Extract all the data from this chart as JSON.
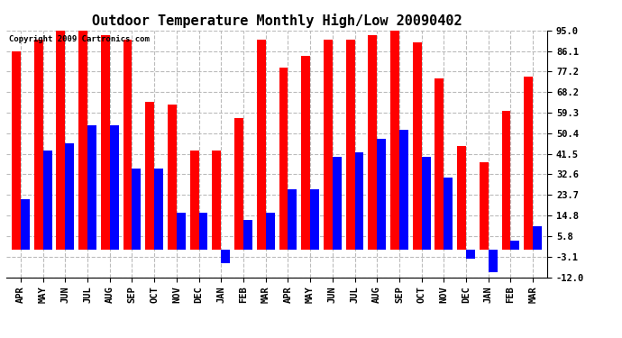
{
  "title": "Outdoor Temperature Monthly High/Low 20090402",
  "copyright": "Copyright 2009 Cartronics.com",
  "categories": [
    "APR",
    "MAY",
    "JUN",
    "JUL",
    "AUG",
    "SEP",
    "OCT",
    "NOV",
    "DEC",
    "JAN",
    "FEB",
    "MAR",
    "APR",
    "MAY",
    "JUN",
    "JUL",
    "AUG",
    "SEP",
    "OCT",
    "NOV",
    "DEC",
    "JAN",
    "FEB",
    "MAR"
  ],
  "highs": [
    86,
    91,
    95,
    95,
    93,
    91,
    64,
    63,
    43,
    43,
    57,
    91,
    79,
    84,
    91,
    91,
    93,
    95,
    90,
    74,
    45,
    38,
    60,
    75
  ],
  "lows": [
    22,
    43,
    46,
    54,
    54,
    35,
    35,
    16,
    16,
    -6,
    13,
    16,
    26,
    26,
    40,
    42,
    48,
    52,
    40,
    31,
    -4,
    -10,
    4,
    10
  ],
  "ylim": [
    -12.0,
    95.0
  ],
  "yticks": [
    95.0,
    86.1,
    77.2,
    68.2,
    59.3,
    50.4,
    41.5,
    32.6,
    23.7,
    14.8,
    5.8,
    -3.1,
    -12.0
  ],
  "bar_width": 0.4,
  "color_high": "#ff0000",
  "color_low": "#0000ff",
  "bg_color": "#ffffff",
  "grid_color": "#bbbbbb",
  "title_fontsize": 11,
  "tick_fontsize": 7.5
}
